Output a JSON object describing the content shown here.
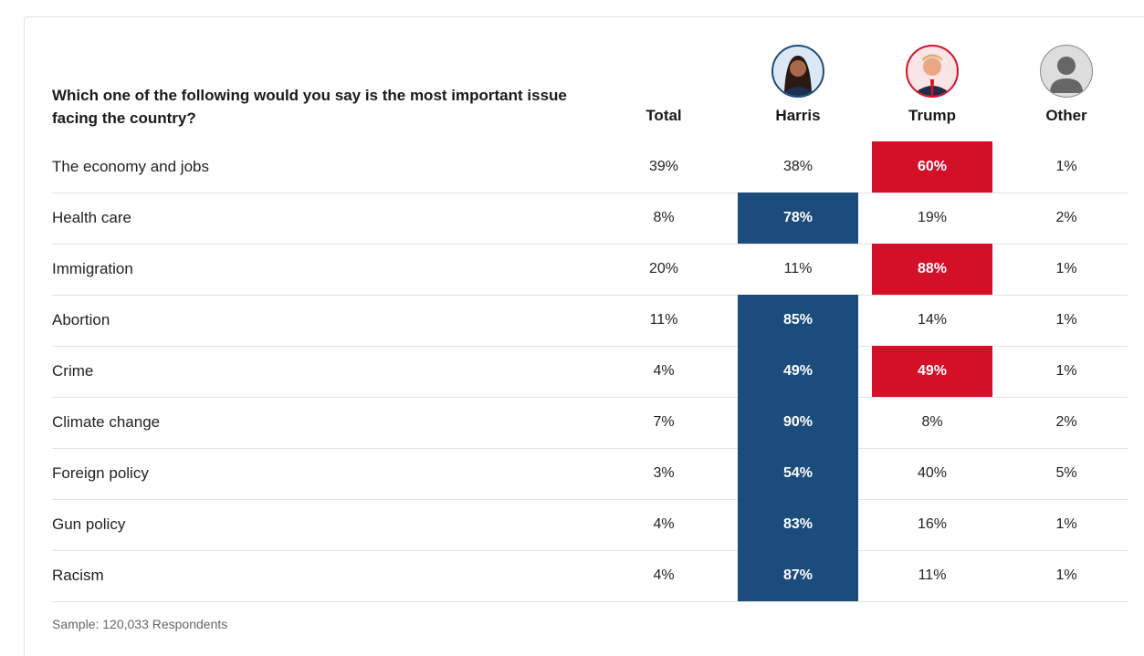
{
  "question": "Which one of the following would you say is the most important issue facing the country?",
  "columns": {
    "total": "Total",
    "harris": "Harris",
    "trump": "Trump",
    "other": "Other"
  },
  "colors": {
    "harris": "#1c4c7c",
    "trump": "#d41029"
  },
  "rows": [
    {
      "label": "The economy and jobs",
      "total": "39%",
      "harris": "38%",
      "trump": "60%",
      "other": "1%",
      "hi": "trump"
    },
    {
      "label": "Health care",
      "total": "8%",
      "harris": "78%",
      "trump": "19%",
      "other": "2%",
      "hi": "harris"
    },
    {
      "label": "Immigration",
      "total": "20%",
      "harris": "11%",
      "trump": "88%",
      "other": "1%",
      "hi": "trump"
    },
    {
      "label": "Abortion",
      "total": "11%",
      "harris": "85%",
      "trump": "14%",
      "other": "1%",
      "hi": "harris"
    },
    {
      "label": "Crime",
      "total": "4%",
      "harris": "49%",
      "trump": "49%",
      "other": "1%",
      "hi": "both"
    },
    {
      "label": "Climate change",
      "total": "7%",
      "harris": "90%",
      "trump": "8%",
      "other": "2%",
      "hi": "harris"
    },
    {
      "label": "Foreign policy",
      "total": "3%",
      "harris": "54%",
      "trump": "40%",
      "other": "5%",
      "hi": "harris"
    },
    {
      "label": "Gun policy",
      "total": "4%",
      "harris": "83%",
      "trump": "16%",
      "other": "1%",
      "hi": "harris"
    },
    {
      "label": "Racism",
      "total": "4%",
      "harris": "87%",
      "trump": "11%",
      "other": "1%",
      "hi": "harris"
    }
  ],
  "footer": "Sample: 120,033 Respondents"
}
